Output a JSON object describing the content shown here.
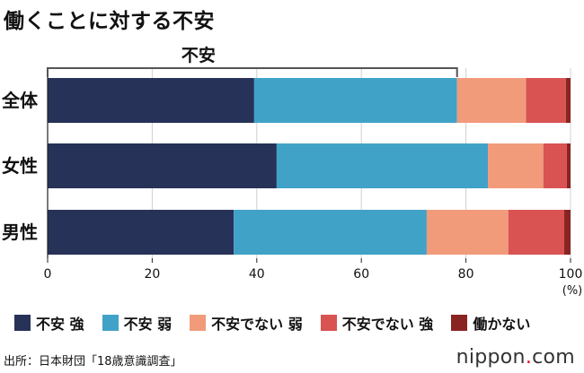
{
  "title": "働くことに対する不安",
  "chart_data": {
    "type": "bar",
    "orientation": "horizontal",
    "stacked": true,
    "categories": [
      "全体",
      "女性",
      "男性"
    ],
    "series": [
      {
        "name": "不安 強",
        "color": "#273259",
        "values": [
          39.5,
          43.8,
          35.6
        ]
      },
      {
        "name": "不安 弱",
        "color": "#41a2c8",
        "values": [
          38.8,
          40.4,
          36.9
        ]
      },
      {
        "name": "不安でない 弱",
        "color": "#f19b7b",
        "values": [
          13.2,
          10.6,
          15.6
        ]
      },
      {
        "name": "不安でない 強",
        "color": "#d95353",
        "values": [
          7.6,
          4.5,
          10.7
        ]
      },
      {
        "name": "働かない",
        "color": "#8a2422",
        "values": [
          0.9,
          0.7,
          1.2
        ]
      }
    ],
    "xlim": [
      0,
      100
    ],
    "x_ticks": [
      "0",
      "20",
      "40",
      "60",
      "80",
      "100"
    ],
    "x_unit": "(%)",
    "grid": true,
    "legend_position": "bottom",
    "annotation": {
      "label": "不安",
      "range": [
        0,
        78.3
      ]
    }
  },
  "source": "出所：日本財団「18歳意識調査」",
  "brand": {
    "name": "nippon",
    "dot": ".",
    "suffix": "com"
  }
}
